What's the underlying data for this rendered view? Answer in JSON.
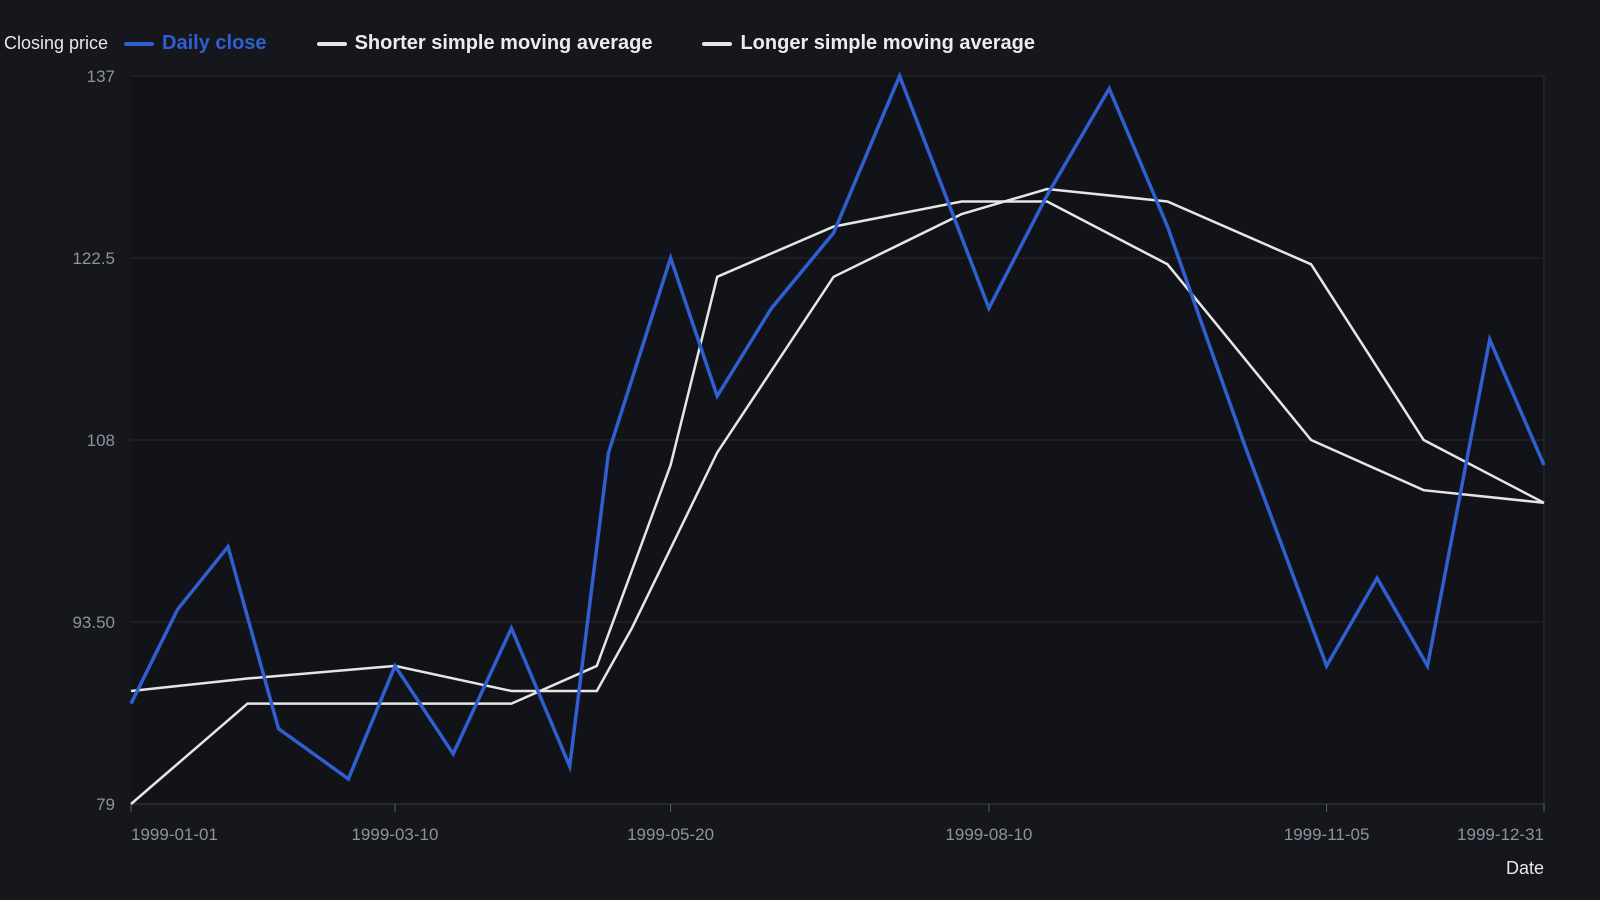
{
  "chart_data": {
    "type": "line",
    "title": "",
    "xlabel": "Date",
    "ylabel": "Closing price",
    "x": [
      "1999-01-01",
      "1999-01-13",
      "1999-01-26",
      "1999-02-08",
      "1999-02-26",
      "1999-03-10",
      "1999-03-25",
      "1999-04-09",
      "1999-04-24",
      "1999-05-04",
      "1999-05-20",
      "1999-06-01",
      "1999-06-15",
      "1999-07-01",
      "1999-07-18",
      "1999-08-10",
      "1999-08-25",
      "1999-09-10",
      "1999-09-25",
      "1999-10-15",
      "1999-11-05",
      "1999-11-18",
      "1999-12-01",
      "1999-12-17",
      "1999-12-31"
    ],
    "series": [
      {
        "name": "Daily close",
        "color": "#2f5fd0",
        "points": [
          [
            "1999-01-01",
            87
          ],
          [
            "1999-01-13",
            94.5
          ],
          [
            "1999-01-26",
            99.5
          ],
          [
            "1999-02-08",
            85
          ],
          [
            "1999-02-26",
            81
          ],
          [
            "1999-03-10",
            90
          ],
          [
            "1999-03-25",
            83
          ],
          [
            "1999-04-09",
            93
          ],
          [
            "1999-04-24",
            82
          ],
          [
            "1999-05-04",
            107
          ],
          [
            "1999-05-20",
            122.5
          ],
          [
            "1999-06-01",
            111.5
          ],
          [
            "1999-06-15",
            118.5
          ],
          [
            "1999-07-01",
            124.5
          ],
          [
            "1999-07-18",
            137
          ],
          [
            "1999-08-10",
            118.5
          ],
          [
            "1999-08-25",
            127.5
          ],
          [
            "1999-09-10",
            136
          ],
          [
            "1999-09-25",
            125
          ],
          [
            "1999-10-15",
            107.5
          ],
          [
            "1999-11-05",
            90
          ],
          [
            "1999-11-18",
            97
          ],
          [
            "1999-12-01",
            90
          ],
          [
            "1999-12-17",
            116
          ],
          [
            "1999-12-31",
            106
          ]
        ]
      },
      {
        "name": "Shorter simple moving average",
        "color": "#e6e6e6",
        "points": [
          [
            "1999-01-01",
            79
          ],
          [
            "1999-01-31",
            87
          ],
          [
            "1999-03-10",
            87
          ],
          [
            "1999-04-09",
            87
          ],
          [
            "1999-05-01",
            90
          ],
          [
            "1999-05-20",
            106
          ],
          [
            "1999-06-01",
            121
          ],
          [
            "1999-07-01",
            125
          ],
          [
            "1999-08-03",
            127
          ],
          [
            "1999-08-25",
            127
          ],
          [
            "1999-09-25",
            122
          ],
          [
            "1999-11-01",
            108
          ],
          [
            "1999-11-30",
            104
          ],
          [
            "1999-12-31",
            103
          ]
        ]
      },
      {
        "name": "Longer simple moving average",
        "color": "#e6e6e6",
        "points": [
          [
            "1999-01-01",
            88
          ],
          [
            "1999-01-31",
            89
          ],
          [
            "1999-03-10",
            90
          ],
          [
            "1999-04-09",
            88
          ],
          [
            "1999-05-01",
            88
          ],
          [
            "1999-05-10",
            93
          ],
          [
            "1999-06-01",
            107
          ],
          [
            "1999-07-01",
            121
          ],
          [
            "1999-08-03",
            126
          ],
          [
            "1999-08-25",
            128
          ],
          [
            "1999-09-25",
            127
          ],
          [
            "1999-11-01",
            122
          ],
          [
            "1999-11-30",
            108
          ],
          [
            "1999-12-31",
            103
          ]
        ]
      }
    ],
    "ylim": [
      79,
      137
    ],
    "yticks": [
      "79",
      "93.50",
      "108",
      "122.5",
      "137"
    ],
    "xticks": [
      "1999-01-01",
      "1999-03-10",
      "1999-05-20",
      "1999-08-10",
      "1999-11-05",
      "1999-12-31"
    ],
    "grid": true,
    "legend_position": "top-left",
    "background": "#15171c",
    "plot_background": "#111318"
  }
}
